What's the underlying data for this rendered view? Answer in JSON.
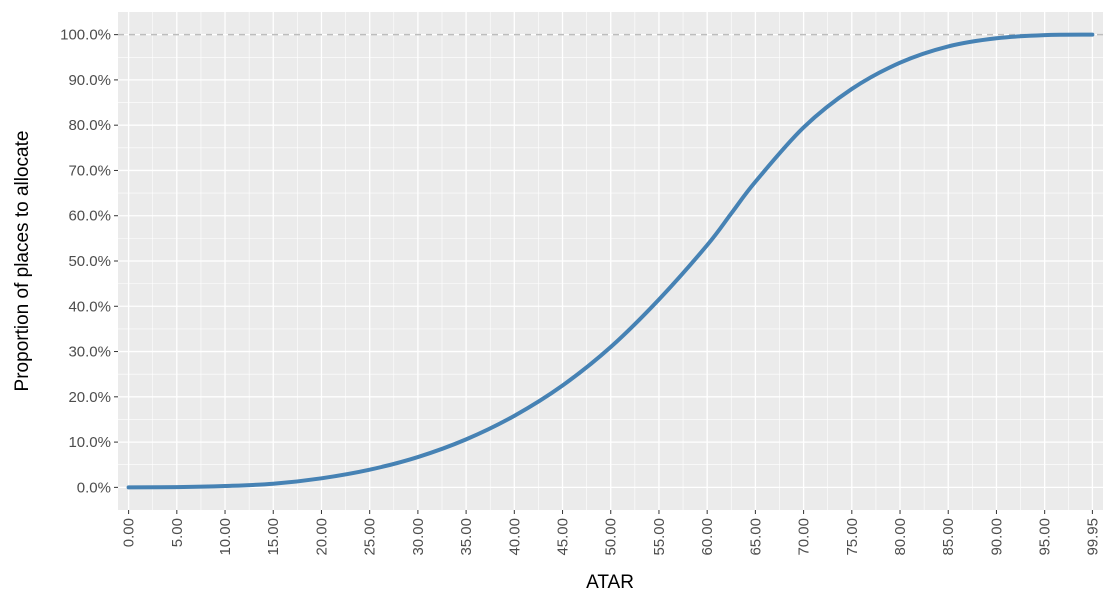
{
  "chart_data": {
    "type": "line",
    "title": "",
    "xlabel": "ATAR",
    "ylabel": "Proportion of places to allocate",
    "xlim": [
      -1.1,
      101.05
    ],
    "ylim": [
      -5,
      105
    ],
    "x_ticks": [
      "0.00",
      "5.00",
      "10.00",
      "15.00",
      "20.00",
      "25.00",
      "30.00",
      "35.00",
      "40.00",
      "45.00",
      "50.00",
      "55.00",
      "60.00",
      "65.00",
      "70.00",
      "75.00",
      "80.00",
      "85.00",
      "90.00",
      "95.00",
      "99.95"
    ],
    "x_tick_values": [
      0,
      5,
      10,
      15,
      20,
      25,
      30,
      35,
      40,
      45,
      50,
      55,
      60,
      65,
      70,
      75,
      80,
      85,
      90,
      95,
      99.95
    ],
    "y_ticks": [
      "0.0%",
      "10.0%",
      "20.0%",
      "30.0%",
      "40.0%",
      "50.0%",
      "60.0%",
      "70.0%",
      "80.0%",
      "90.0%",
      "100.0%"
    ],
    "y_tick_values": [
      0,
      10,
      20,
      30,
      40,
      50,
      60,
      70,
      80,
      90,
      100
    ],
    "reference_line": {
      "y": 100,
      "style": "dashed",
      "color": "#bdbdbd"
    },
    "grid": true,
    "colors": {
      "panel": "#ebebeb",
      "grid": "#ffffff",
      "line": "#4682b4"
    },
    "series": [
      {
        "color": "#4682b4",
        "x": [
          0,
          5,
          10,
          15,
          20,
          25,
          30,
          35,
          40,
          45,
          50,
          55,
          60,
          62.5,
          65,
          70,
          75,
          80,
          85,
          90,
          95,
          99.95
        ],
        "y": [
          0,
          0.05,
          0.3,
          0.8,
          2,
          3.9,
          6.7,
          10.6,
          15.8,
          22.5,
          31,
          41.5,
          53.5,
          60.5,
          67.5,
          79.5,
          88,
          93.8,
          97.4,
          99.2,
          99.9,
          100
        ]
      }
    ]
  }
}
